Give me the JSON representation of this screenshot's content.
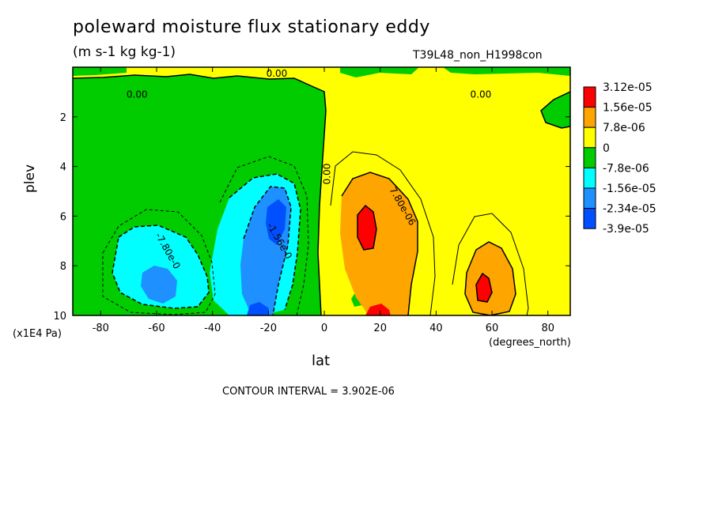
{
  "chart_data": {
    "type": "heatmap",
    "title": "poleward moisture flux stationary eddy",
    "units": "(m s-1 kg kg-1)",
    "run_label": "T39L48_non_H1998con",
    "xlabel": "lat",
    "x_units": "(degrees_north)",
    "ylabel": "plev",
    "y_multiplier": "(x1E4 Pa)",
    "xlim": [
      -90,
      88
    ],
    "ylim": [
      0,
      10
    ],
    "y_inverted": true,
    "x_ticks": [
      -80,
      -60,
      -40,
      -20,
      0,
      20,
      40,
      60,
      80
    ],
    "y_ticks": [
      2,
      4,
      6,
      8,
      10
    ],
    "contour_interval_text": "CONTOUR INTERVAL = 3.902E-06",
    "legend": {
      "levels": [
        "3.12e-05",
        "1.56e-05",
        "7.8e-06",
        "0",
        "-7.8e-06",
        "-1.56e-05",
        "-2.34e-05",
        "-3.9e-05"
      ],
      "colors": [
        "#ff0000",
        "#ffa500",
        "#ffff00",
        "#00cc00",
        "#00ffff",
        "#1e90ff",
        "#0050ff"
      ]
    },
    "contour_labels": [
      {
        "text": "0.00",
        "lat": -67,
        "plev": 1.1
      },
      {
        "text": "0.00",
        "lat": -17,
        "plev": 0.25
      },
      {
        "text": "0.00",
        "lat": 56,
        "plev": 1.1
      },
      {
        "text": "0.00",
        "lat": 1,
        "plev": 4.3
      },
      {
        "text": "-7.80e-0",
        "lat": -56,
        "plev": 7.4
      },
      {
        "text": "-1.56e-0",
        "lat": -16,
        "plev": 7.0
      },
      {
        "text": "7.80e-06",
        "lat": 28,
        "plev": 5.6
      }
    ]
  }
}
